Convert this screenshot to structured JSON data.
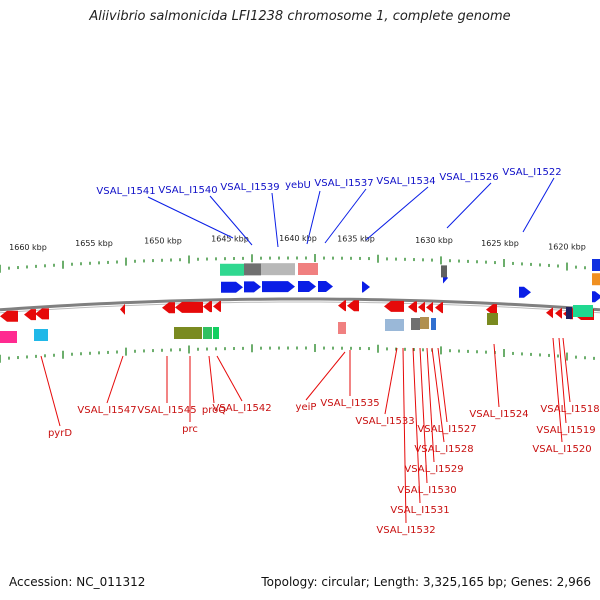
{
  "title": "Aliivibrio salmonicida LFI1238 chromosome 1, complete genome",
  "footer": {
    "accession": "Accession: NC_011312",
    "stats": "Topology: circular; Length: 3,325,165 bp; Genes: 2,966"
  },
  "colors": {
    "forward": "#0a1ee6",
    "reverse": "#e60a0a",
    "backbone": "#808080",
    "ticks": "#2e8b2e"
  },
  "scale_labels": [
    "1660 kbp",
    "1655 kbp",
    "1650 kbp",
    "1645 kbp",
    "1640 kbp",
    "1635 kbp",
    "1630 kbp",
    "1625 kbp",
    "1620 kbp"
  ],
  "forward_labels": [
    "VSAL_I1541",
    "VSAL_I1540",
    "VSAL_I1539",
    "yebU",
    "VSAL_I1537",
    "VSAL_I1534",
    "VSAL_I1526",
    "VSAL_I1522"
  ],
  "reverse_labels": [
    "pyrD",
    "VSAL_I1547",
    "VSAL_I1545",
    "prc",
    "proQ",
    "VSAL_I1542",
    "yeiP",
    "VSAL_I1535",
    "VSAL_I1533",
    "VSAL_I1527",
    "VSAL_I1528",
    "VSAL_I1529",
    "VSAL_I1530",
    "VSAL_I1531",
    "VSAL_I1532",
    "VSAL_I1524",
    "VSAL_I1518",
    "VSAL_I1519",
    "VSAL_I1520"
  ]
}
